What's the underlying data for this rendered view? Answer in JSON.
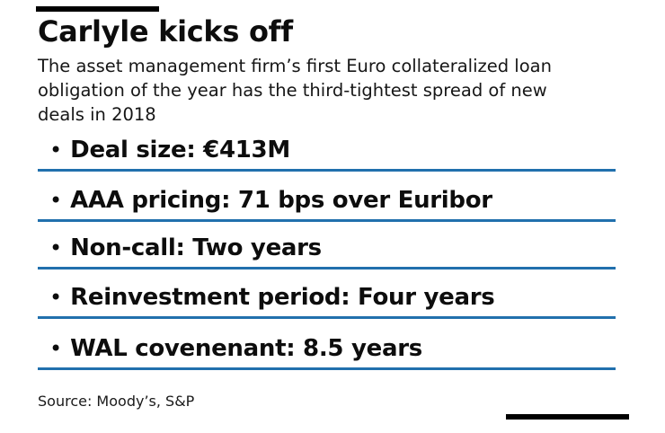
{
  "card": {
    "title": "Carlyle kicks off",
    "subtitle_lines": [
      "The asset management firm’s first Euro collateralized loan",
      "obligation of the year has the third-tightest spread of new",
      "deals in 2018"
    ],
    "bullets": [
      "Deal size: €413M",
      "AAA pricing: 71 bps over Euribor",
      "Non-call: Two years",
      "Reinvestment period: Four years",
      "WAL covenenant: 8.5 years"
    ],
    "source": "Source: Moody’s, S&P",
    "glyphs": {
      "bullet": "•"
    },
    "colors": {
      "text": "#0d0d0d",
      "rule_blue": "#2170ad",
      "accent_bar_black": "#000000",
      "background": "#ffffff"
    }
  }
}
